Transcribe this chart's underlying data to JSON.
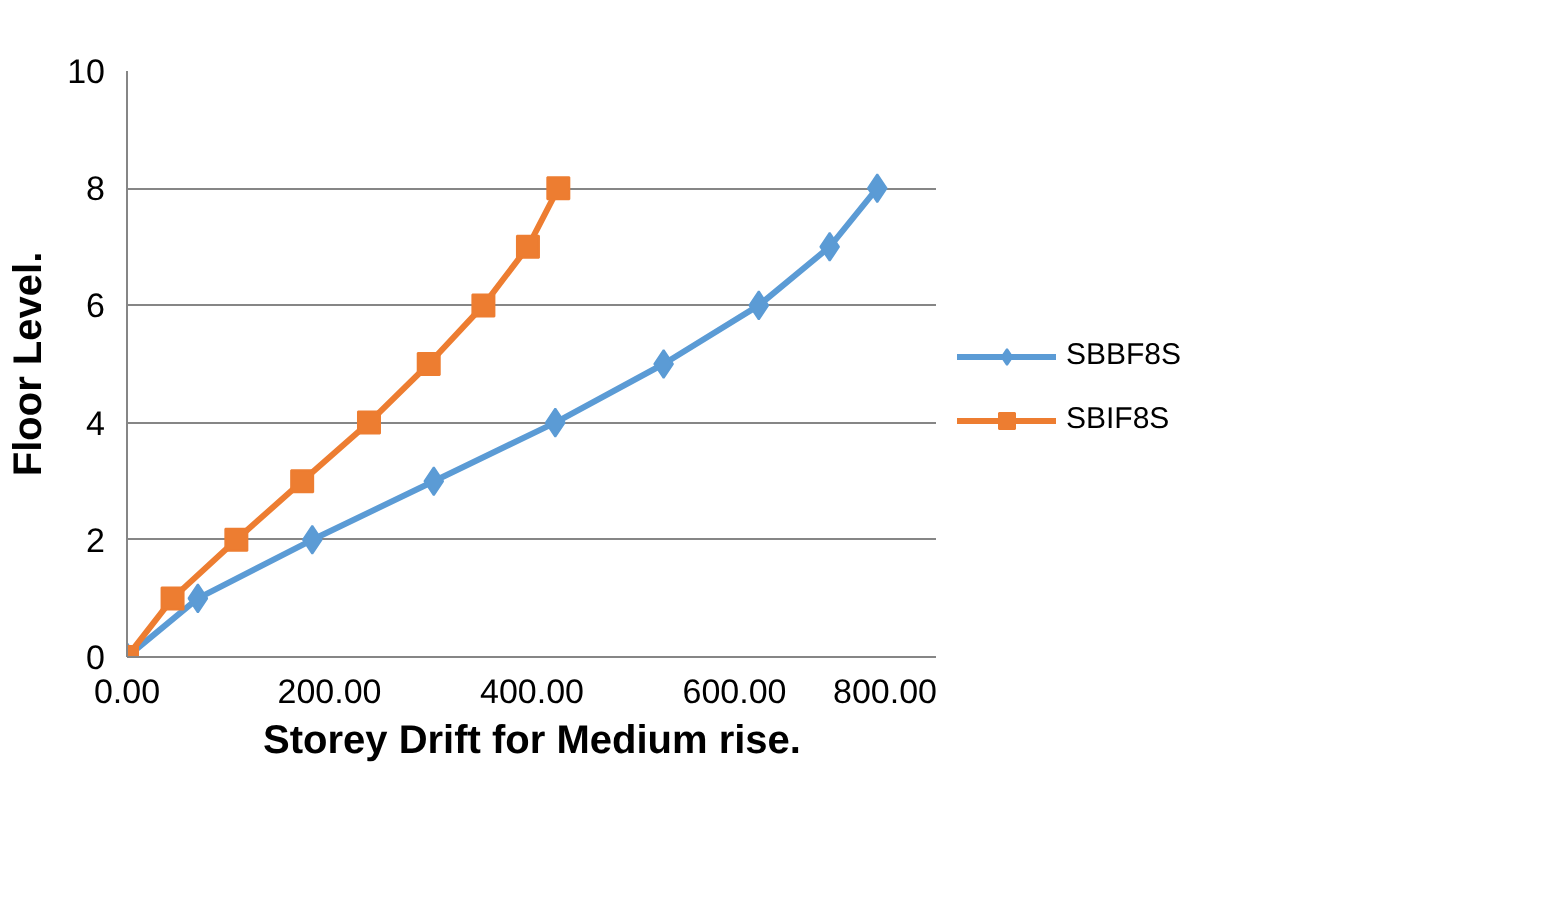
{
  "chart_data": {
    "type": "line",
    "xlabel": "Storey Drift for Medium rise.",
    "ylabel": "Floor Level.",
    "xlim": [
      0,
      800
    ],
    "xticks": [
      {
        "value": 0,
        "label": "0.00"
      },
      {
        "value": 200,
        "label": "200.00"
      },
      {
        "value": 400,
        "label": "400.00"
      },
      {
        "value": 600,
        "label": "600.00"
      },
      {
        "value": 800,
        "label": "800.00"
      }
    ],
    "ylim": [
      0,
      10
    ],
    "yticks": [
      0,
      2,
      4,
      6,
      8,
      10
    ],
    "grid": "y",
    "legend": "right",
    "series": [
      {
        "name": "SBBF8S",
        "color": "#5b9bd5",
        "marker": "diamond",
        "x": [
          0,
          70,
          183,
          303,
          423,
          530,
          624,
          694,
          741
        ],
        "values": [
          0,
          1,
          2,
          3,
          4,
          5,
          6,
          7,
          8
        ]
      },
      {
        "name": "SBIF8S",
        "color": "#ed7d31",
        "marker": "square",
        "x": [
          0,
          45,
          108,
          173,
          239,
          298,
          352,
          396,
          426
        ],
        "values": [
          0,
          1,
          2,
          3,
          4,
          5,
          6,
          7,
          8
        ]
      }
    ]
  }
}
